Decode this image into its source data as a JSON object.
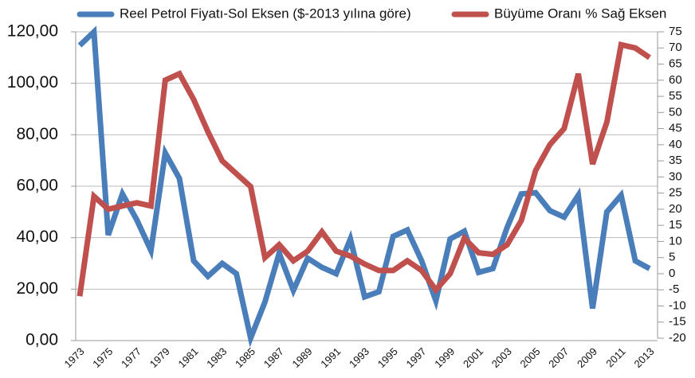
{
  "chart_data": {
    "type": "line",
    "categories": [
      "1973",
      null,
      "1975",
      null,
      "1977",
      null,
      "1979",
      null,
      "1981",
      null,
      "1983",
      null,
      "1985",
      null,
      "1987",
      null,
      "1989",
      null,
      "1991",
      null,
      "1993",
      null,
      "1995",
      null,
      "1997",
      null,
      "1999",
      null,
      "2001",
      null,
      "2003",
      null,
      "2005",
      null,
      "2007",
      null,
      "2009",
      null,
      "2011",
      null,
      "2013"
    ],
    "series": [
      {
        "name": "Reel Petrol Fiyatı-Sol Eksen ($-2013 yılına göre)",
        "color": "#4a7ebb",
        "axis": "y",
        "values": [
          114.7,
          120,
          41,
          57,
          47,
          35,
          73,
          63,
          31,
          25,
          30,
          26,
          1,
          15,
          34,
          19.5,
          32,
          28.5,
          26,
          39.5,
          17,
          19,
          40.5,
          43,
          31,
          15.5,
          39.5,
          42.5,
          26.5,
          28,
          44,
          57,
          57.5,
          50.5,
          48,
          56.5,
          12.5,
          50,
          56.5,
          31,
          28
        ]
      },
      {
        "name": "Büyüme Oranı % Sağ Eksen",
        "color": "#c0504d",
        "axis": "y2",
        "values": [
          -7,
          24,
          20,
          21,
          22,
          21,
          60,
          62,
          54,
          44,
          35,
          31,
          27,
          5,
          9,
          4,
          7,
          13,
          7,
          5.5,
          3,
          1,
          1,
          4,
          1,
          -5,
          0,
          11,
          6.5,
          6,
          9,
          16.5,
          32,
          40,
          45,
          62,
          34,
          47,
          71,
          70,
          67
        ]
      }
    ],
    "ylim": [
      0,
      120
    ],
    "yticks": [
      {
        "value": 0,
        "label": "0,00"
      },
      {
        "value": 20,
        "label": "20,00"
      },
      {
        "value": 40,
        "label": "40,00"
      },
      {
        "value": 60,
        "label": "60,00"
      },
      {
        "value": 80,
        "label": "80,00"
      },
      {
        "value": 100,
        "label": "100,00"
      },
      {
        "value": 120,
        "label": "120,00"
      }
    ],
    "y2lim": [
      -20,
      75
    ],
    "y2ticks": [
      -20,
      -15,
      -10,
      -5,
      0,
      5,
      10,
      15,
      20,
      25,
      30,
      35,
      40,
      45,
      50,
      55,
      60,
      65,
      70,
      75
    ],
    "grid": true,
    "legend": "top"
  }
}
